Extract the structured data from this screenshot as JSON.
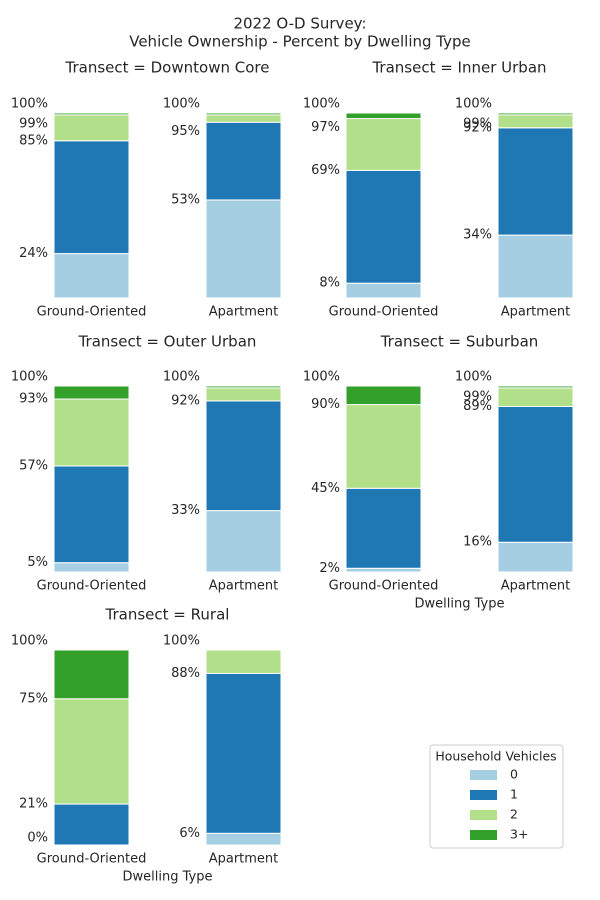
{
  "chart_data": {
    "type": "bar",
    "stacked": true,
    "title": "2022 O-D Survey:",
    "subtitle": "Vehicle Ownership - Percent by Dwelling Type",
    "xlabel": "Dwelling Type",
    "legend_title": "Household Vehicles",
    "legend": "lower right",
    "ylim": [
      0,
      100
    ],
    "series": [
      {
        "name": "0",
        "color": "#a6cee3"
      },
      {
        "name": "1",
        "color": "#1f78b4"
      },
      {
        "name": "2",
        "color": "#b2df8a"
      },
      {
        "name": "3+",
        "color": "#33a02c"
      }
    ],
    "facets": [
      {
        "title": "Transect = Downtown Core",
        "categories": [
          "Ground-Oriented",
          "Apartment"
        ],
        "values": [
          [
            24,
            61,
            14,
            1
          ],
          [
            53,
            42,
            4,
            1
          ]
        ],
        "yticks": [
          [
            {
              "value": 24,
              "label": "24%"
            },
            {
              "value": 85,
              "label": "85%"
            },
            {
              "value": 99,
              "label": "99%"
            },
            {
              "value": 100,
              "label": "100%"
            }
          ],
          [
            {
              "value": 53,
              "label": "53%"
            },
            {
              "value": 95,
              "label": "95%"
            },
            {
              "value": 100,
              "label": "100%"
            }
          ]
        ]
      },
      {
        "title": "Transect = Inner Urban",
        "categories": [
          "Ground-Oriented",
          "Apartment"
        ],
        "values": [
          [
            8,
            61,
            28,
            3
          ],
          [
            34,
            58,
            7,
            1
          ]
        ],
        "yticks": [
          [
            {
              "value": 8,
              "label": "8%"
            },
            {
              "value": 69,
              "label": "69%"
            },
            {
              "value": 97,
              "label": "97%"
            },
            {
              "value": 100,
              "label": "100%"
            }
          ],
          [
            {
              "value": 34,
              "label": "34%"
            },
            {
              "value": 92,
              "label": "92%"
            },
            {
              "value": 99,
              "label": "99%"
            },
            {
              "value": 100,
              "label": "100%"
            }
          ]
        ]
      },
      {
        "title": "Transect = Outer Urban",
        "categories": [
          "Ground-Oriented",
          "Apartment"
        ],
        "values": [
          [
            5,
            52,
            36,
            7
          ],
          [
            33,
            59,
            7,
            1
          ]
        ],
        "yticks": [
          [
            {
              "value": 5,
              "label": "5%"
            },
            {
              "value": 57,
              "label": "57%"
            },
            {
              "value": 93,
              "label": "93%"
            },
            {
              "value": 100,
              "label": "100%"
            }
          ],
          [
            {
              "value": 33,
              "label": "33%"
            },
            {
              "value": 92,
              "label": "92%"
            },
            {
              "value": 100,
              "label": "100%"
            }
          ]
        ]
      },
      {
        "title": "Transect = Suburban",
        "categories": [
          "Ground-Oriented",
          "Apartment"
        ],
        "values": [
          [
            2,
            43,
            45,
            10
          ],
          [
            16,
            73,
            10,
            1
          ]
        ],
        "yticks": [
          [
            {
              "value": 2,
              "label": "2%"
            },
            {
              "value": 45,
              "label": "45%"
            },
            {
              "value": 90,
              "label": "90%"
            },
            {
              "value": 100,
              "label": "100%"
            }
          ],
          [
            {
              "value": 16,
              "label": "16%"
            },
            {
              "value": 89,
              "label": "89%"
            },
            {
              "value": 99,
              "label": "99%"
            },
            {
              "value": 100,
              "label": "100%"
            }
          ]
        ]
      },
      {
        "title": "Transect = Rural",
        "categories": [
          "Ground-Oriented",
          "Apartment"
        ],
        "values": [
          [
            0,
            21,
            54,
            25
          ],
          [
            6,
            82,
            12,
            0
          ]
        ],
        "yticks": [
          [
            {
              "value": 0,
              "label": "0%"
            },
            {
              "value": 21,
              "label": "21%"
            },
            {
              "value": 75,
              "label": "75%"
            },
            {
              "value": 100,
              "label": "100%"
            }
          ],
          [
            {
              "value": 6,
              "label": "6%"
            },
            {
              "value": 88,
              "label": "88%"
            },
            {
              "value": 100,
              "label": "100%"
            }
          ]
        ]
      }
    ]
  }
}
